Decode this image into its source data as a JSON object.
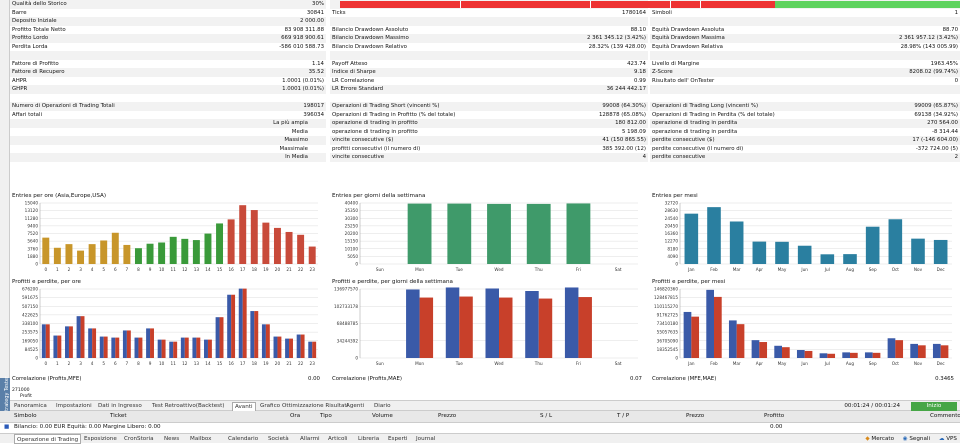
{
  "side_panel": {
    "label": "Strategy Tester"
  },
  "stats": {
    "col1": [
      {
        "label": "Qualità dello Storico",
        "value": "30%"
      },
      {
        "label": "Barre",
        "value": "30841"
      },
      {
        "label": "Deposito Iniziale",
        "value": "2 000.00"
      },
      {
        "label": "Profitto Totale Netto",
        "value": "83 908 311.88"
      },
      {
        "label": "Profitto Lordo",
        "value": "669 918 900.61"
      },
      {
        "label": "Perdita Lorda",
        "value": "-586 010 588.73"
      },
      {
        "label": "",
        "value": ""
      },
      {
        "label": "Fattore di Profitto",
        "value": "1.14"
      },
      {
        "label": "Fattore di Recupero",
        "value": "35.52"
      },
      {
        "label": "AHPR",
        "value": "1.0001 (0.01%)"
      },
      {
        "label": "GHPR",
        "value": "1.0001 (0.01%)"
      },
      {
        "label": "",
        "value": ""
      },
      {
        "label": "Numero di Operazioni di Trading Totali",
        "value": "198017"
      },
      {
        "label": "Affari totali",
        "value": "396034"
      },
      {
        "label": "La più ampia",
        "value": ""
      },
      {
        "label": "Media",
        "value": ""
      },
      {
        "label": "Massimo",
        "value": ""
      },
      {
        "label": "Massimale",
        "value": ""
      },
      {
        "label": "In Media",
        "value": ""
      }
    ],
    "col2": [
      {
        "label": "",
        "value": ""
      },
      {
        "label": "Ticks",
        "value": "1780164"
      },
      {
        "label": "",
        "value": ""
      },
      {
        "label": "Bilancio Drawdown Assoluto",
        "value": "88.10"
      },
      {
        "label": "Bilancio Drawdown Massimo",
        "value": "2 361 345.12 (3.42%)"
      },
      {
        "label": "Bilancio Drawdown Relativo",
        "value": "28.32% (139 428.00)"
      },
      {
        "label": "",
        "value": ""
      },
      {
        "label": "Payoff Atteso",
        "value": "423.74"
      },
      {
        "label": "Indice di Sharpe",
        "value": "9.18"
      },
      {
        "label": "LR Correlazione",
        "value": "0.99"
      },
      {
        "label": "LR Errore Standard",
        "value": "36 244 442.17"
      },
      {
        "label": "",
        "value": ""
      },
      {
        "label": "Operazioni di Trading Short (vincenti %)",
        "value": "99008 (64.30%)"
      },
      {
        "label": "Operazioni di Trading in Profitto (% del totale)",
        "value": "128878 (65.08%)"
      },
      {
        "label": "operazione di trading in profitto",
        "value": "180 812.00"
      },
      {
        "label": "operazione di trading in profitto",
        "value": "5 198.09"
      },
      {
        "label": "vincite consecutive ($)",
        "value": "41 (150 865.55)"
      },
      {
        "label": "profitti consecutivi (il numero di)",
        "value": "385 392.00 (12)"
      },
      {
        "label": "vincite consecutive",
        "value": "4"
      }
    ],
    "col3": [
      {
        "label": "",
        "value": ""
      },
      {
        "label": "Simboli",
        "value": "1"
      },
      {
        "label": "",
        "value": ""
      },
      {
        "label": "Equità Drawdown Assoluta",
        "value": "88.70"
      },
      {
        "label": "Equità Drawdown Massima",
        "value": "2 361 957.12 (3.42%)"
      },
      {
        "label": "Equità Drawdown Relativa",
        "value": "28.98% (143 005.99)"
      },
      {
        "label": "",
        "value": ""
      },
      {
        "label": "Livello di Margine",
        "value": "1963.45%"
      },
      {
        "label": "Z-Score",
        "value": "8208.02 (99.74%)"
      },
      {
        "label": "Risultato dell' OnTester",
        "value": "0"
      },
      {
        "label": "",
        "value": ""
      },
      {
        "label": "",
        "value": ""
      },
      {
        "label": "Operazioni di Trading Long (vincenti %)",
        "value": "99009 (65.87%)"
      },
      {
        "label": "Operazioni di Trading in Perdita (% del totale)",
        "value": "69138 (34.92%)"
      },
      {
        "label": "operazione di trading in perdita",
        "value": "270 564.00"
      },
      {
        "label": "operazione di trading in perdita",
        "value": "-8 314.44"
      },
      {
        "label": "perdite consecutive ($)",
        "value": "17 (-146 604.00)"
      },
      {
        "label": "perdite consecutive (il numero di)",
        "value": "-372 724.00 (5)"
      },
      {
        "label": "perdite consecutive",
        "value": "2"
      }
    ]
  },
  "quality_bar": {
    "green_fraction": 0.3
  },
  "charts": [
    {
      "title": "Entries per ore (Asia,Europe,USA)",
      "type": "bar",
      "categories": [
        "0",
        "1",
        "2",
        "3",
        "4",
        "5",
        "6",
        "7",
        "8",
        "9",
        "10",
        "11",
        "12",
        "13",
        "14",
        "15",
        "16",
        "17",
        "18",
        "19",
        "20",
        "21",
        "22",
        "23"
      ],
      "values": [
        6500,
        4000,
        4900,
        3300,
        4900,
        5800,
        7700,
        4700,
        3900,
        5000,
        5300,
        6700,
        6200,
        5900,
        7500,
        10000,
        11000,
        14500,
        13300,
        10200,
        8900,
        7900,
        7200,
        4300
      ],
      "y_ticks": [
        "15040",
        "13120",
        "11280",
        "9400",
        "7520",
        "5640",
        "3760",
        "1880",
        "0"
      ],
      "ymax": 15040,
      "colors": [
        "#c8962a",
        "#c8962a",
        "#c8962a",
        "#c8962a",
        "#c8962a",
        "#c8962a",
        "#c8962a",
        "#c8962a",
        "#3a9a3a",
        "#3a9a3a",
        "#3a9a3a",
        "#3a9a3a",
        "#3a9a3a",
        "#3a9a3a",
        "#3a9a3a",
        "#3a9a3a",
        "#c84a3a",
        "#c84a3a",
        "#c84a3a",
        "#c84a3a",
        "#c84a3a",
        "#c84a3a",
        "#c84a3a",
        "#c84a3a"
      ]
    },
    {
      "title": "Entries per giorni della settimana",
      "type": "bar",
      "categories": [
        "Sun",
        "Mon",
        "Tue",
        "Wed",
        "Thu",
        "Fri",
        "Sat"
      ],
      "values": [
        0,
        40000,
        40000,
        39800,
        39800,
        40100,
        0
      ],
      "y_ticks": [
        "40400",
        "35350",
        "30300",
        "25250",
        "20200",
        "15150",
        "10100",
        "5050",
        "0"
      ],
      "ymax": 40400,
      "colors": [
        "#3f9a6a",
        "#3f9a6a",
        "#3f9a6a",
        "#3f9a6a",
        "#3f9a6a",
        "#3f9a6a",
        "#3f9a6a"
      ]
    },
    {
      "title": "Entries per mesi",
      "type": "bar",
      "categories": [
        "Jan",
        "Feb",
        "Mar",
        "Apr",
        "May",
        "Jun",
        "Jul",
        "Aug",
        "Sep",
        "Oct",
        "Nov",
        "Dec"
      ],
      "values": [
        27000,
        30500,
        22800,
        12000,
        11900,
        9800,
        5200,
        5300,
        20000,
        24000,
        13600,
        12900
      ],
      "y_ticks": [
        "32720",
        "28630",
        "24540",
        "20450",
        "16360",
        "12270",
        "8180",
        "4090",
        "0"
      ],
      "ymax": 32720,
      "colors": [
        "#2a7fa0",
        "#2a7fa0",
        "#2a7fa0",
        "#2a7fa0",
        "#2a7fa0",
        "#2a7fa0",
        "#2a7fa0",
        "#2a7fa0",
        "#2a7fa0",
        "#2a7fa0",
        "#2a7fa0",
        "#2a7fa0"
      ]
    },
    {
      "title": "Profitti e perdite, per ore",
      "type": "grouped",
      "categories": [
        "0",
        "1",
        "2",
        "3",
        "4",
        "5",
        "6",
        "7",
        "8",
        "9",
        "10",
        "11",
        "12",
        "13",
        "14",
        "15",
        "16",
        "17",
        "18",
        "19",
        "20",
        "21",
        "22",
        "23"
      ],
      "series": [
        {
          "color": "#3a5aa8",
          "values": [
            330000,
            220000,
            310000,
            410000,
            290000,
            210000,
            200000,
            270000,
            200000,
            290000,
            180000,
            160000,
            200000,
            200000,
            180000,
            400000,
            620000,
            680000,
            460000,
            330000,
            210000,
            190000,
            230000,
            160000
          ]
        },
        {
          "color": "#c8402a",
          "values": [
            330000,
            220000,
            310000,
            410000,
            290000,
            210000,
            200000,
            270000,
            200000,
            290000,
            180000,
            160000,
            200000,
            200000,
            180000,
            400000,
            620000,
            680000,
            460000,
            330000,
            210000,
            190000,
            230000,
            160000
          ]
        }
      ],
      "y_ticks": [
        "676200",
        "591675",
        "507150",
        "422625",
        "338100",
        "253575",
        "169050",
        "84525",
        "0"
      ],
      "ymax": 676200
    },
    {
      "title": "Profitti e perdite, per giorni della settimana",
      "type": "grouped",
      "categories": [
        "Sun",
        "Mon",
        "Tue",
        "Wed",
        "Thu",
        "Fri",
        "Sat"
      ],
      "series": [
        {
          "color": "#3a5aa8",
          "values": [
            0,
            136000000,
            140000000,
            138000000,
            133000000,
            140000000,
            0
          ]
        },
        {
          "color": "#c8402a",
          "values": [
            0,
            120000000,
            122000000,
            120000000,
            118000000,
            121000000,
            0
          ]
        }
      ],
      "y_ticks": [
        "136977570",
        "102733178",
        "68488785",
        "34244392",
        "0"
      ],
      "ymax": 136977570
    },
    {
      "title": "Profitti e perdite, per mesi",
      "type": "grouped",
      "categories": [
        "Jan",
        "Feb",
        "Mar",
        "Apr",
        "May",
        "Jun",
        "Jul",
        "Aug",
        "Sep",
        "Oct",
        "Nov",
        "Dec"
      ],
      "series": [
        {
          "color": "#3a5aa8",
          "values": [
            98000000,
            145000000,
            80000000,
            38000000,
            26000000,
            17000000,
            10000000,
            12000000,
            12000000,
            42000000,
            30000000,
            30000000
          ]
        },
        {
          "color": "#c8402a",
          "values": [
            88000000,
            130000000,
            72000000,
            34000000,
            23000000,
            15000000,
            9000000,
            11000000,
            11000000,
            38000000,
            27000000,
            27000000
          ]
        }
      ],
      "y_ticks": [
        "146820360",
        "128467815",
        "110115270",
        "91762725",
        "73410180",
        "55057635",
        "36705090",
        "18352545",
        "0"
      ],
      "ymax": 146820360
    }
  ],
  "correlations": [
    {
      "label": "Correlazione (Profits,MFE)",
      "value": "0.00"
    },
    {
      "label": "Correlazione (Profits,MAE)",
      "value": "0.07"
    },
    {
      "label": "Correlazione (MFE,MAE)",
      "value": "0.3465"
    }
  ],
  "profit_strip": {
    "label": "Profit",
    "ytick": "271000"
  },
  "tester_tabs": [
    "Panoramica",
    "Impostazioni",
    "Dati in Ingresso",
    "Test Retroattivo(Backtest)",
    "Avanti",
    "Grafico",
    "Ottimizzazione Risultati",
    "Agenti",
    "Diario"
  ],
  "tester_active_tab": "Avanti",
  "tester_time": "00:01:24 / 00:01:24",
  "start_button": "Inizio",
  "table_head": [
    "Simbolo",
    "Ticket",
    "Ora",
    "Tipo",
    "Volume",
    "Prezzo",
    "S / L",
    "T / P",
    "Prezzo",
    "Profitto",
    "Commento"
  ],
  "table_row": {
    "text": "Bilancio: 0.00 EUR  Equità: 0.00  Margine Libero: 0.00",
    "value": "0.00"
  },
  "bottom_tabs": [
    "Operazione di Trading",
    "Esposizione",
    "CronStoria",
    "News",
    "Mailbox",
    "Calendario",
    "Società",
    "Allarmi",
    "Articoli",
    "Libreria",
    "Esperti",
    "Journal"
  ],
  "bottom_right": [
    "Mercato",
    "Segnali",
    "VPS"
  ]
}
